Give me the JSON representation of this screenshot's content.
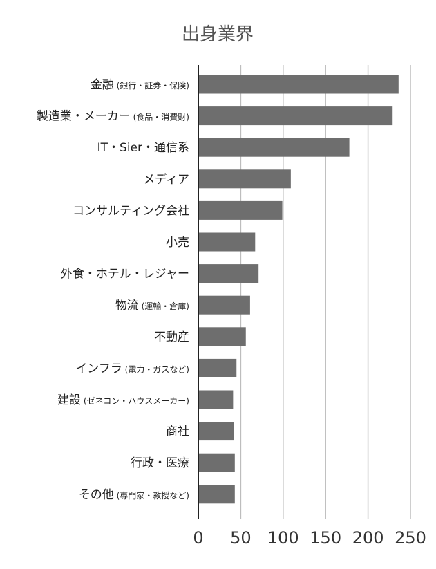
{
  "chart_data": {
    "type": "bar",
    "orientation": "horizontal",
    "title": "出身業界",
    "xlabel": "",
    "ylabel": "",
    "xlim": [
      0,
      250
    ],
    "xticks": [
      "0",
      "50",
      "100",
      "150",
      "200",
      "250"
    ],
    "grid": true,
    "categories": [
      {
        "main": "金融",
        "sub": "(銀行・証券・保険)"
      },
      {
        "main": "製造業・メーカー",
        "sub": "(食品・消費財)"
      },
      {
        "main": "IT・Sier・通信系",
        "sub": ""
      },
      {
        "main": "メディア",
        "sub": ""
      },
      {
        "main": "コンサルティング会社",
        "sub": ""
      },
      {
        "main": "小売",
        "sub": ""
      },
      {
        "main": "外食・ホテル・レジャー",
        "sub": ""
      },
      {
        "main": "物流",
        "sub": "(運輸・倉庫)"
      },
      {
        "main": "不動産",
        "sub": ""
      },
      {
        "main": "インフラ",
        "sub": "(電力・ガスなど)"
      },
      {
        "main": "建設",
        "sub": "(ゼネコン・ハウスメーカー)"
      },
      {
        "main": "商社",
        "sub": ""
      },
      {
        "main": "行政・医療",
        "sub": ""
      },
      {
        "main": "その他",
        "sub": "(専門家・教授など)"
      }
    ],
    "values": [
      236,
      229,
      178,
      109,
      99,
      67,
      71,
      61,
      56,
      45,
      41,
      42,
      43,
      43
    ],
    "bar_color": "#6e6e6e",
    "grid_color": "#bdbdbd",
    "axis_color": "#222222"
  }
}
